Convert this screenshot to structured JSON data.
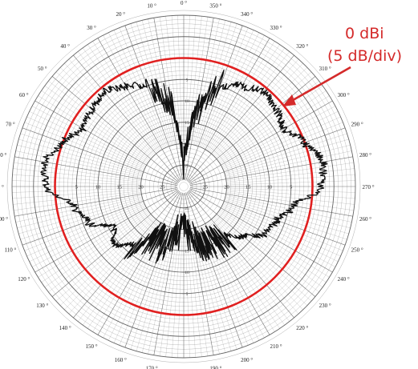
{
  "chart_data": {
    "type": "polar",
    "angle_labels": [
      "0 °",
      "10 °",
      "20 °",
      "30 °",
      "40 °",
      "50 °",
      "60 °",
      "70 °",
      "80 °",
      "90 °",
      "100 °",
      "110 °",
      "120 °",
      "130 °",
      "140 °",
      "150 °",
      "160 °",
      "170 °",
      "180 °",
      "190 °",
      "200 °",
      "210 °",
      "220 °",
      "230 °",
      "240 °",
      "250 °",
      "260 °",
      "270 °",
      "280 °",
      "290 °",
      "300 °",
      "310 °",
      "320 °",
      "330 °",
      "340 °",
      "350 °"
    ],
    "angle_direction": "counterclockwise",
    "zero_at": "top",
    "radial_tick_labels": [
      "25",
      "20",
      "15",
      "10",
      "5"
    ],
    "radial_unit_per_div": 5,
    "reference_circle_label": "0 dBi",
    "colors": {
      "pattern": "#111111",
      "reference": "#e02020",
      "grid": "#555555",
      "annotation": "#d42a2a"
    },
    "pattern": {
      "angles": [
        0,
        10,
        20,
        30,
        40,
        50,
        60,
        70,
        80,
        90,
        100,
        110,
        120,
        130,
        140,
        150,
        160,
        170,
        180,
        190,
        200,
        210,
        220,
        230,
        240,
        250,
        260,
        270,
        280,
        290,
        300,
        310,
        320,
        330,
        340,
        350
      ],
      "levels": [
        -25,
        -10,
        -5,
        -3,
        -1,
        -2,
        -3,
        0,
        3,
        2,
        -4,
        -6,
        -11,
        -9,
        -12,
        -16,
        -15,
        -19,
        -20,
        -18,
        -15,
        -15,
        -15,
        -12,
        -8,
        -7,
        -4,
        2,
        3,
        0,
        -3,
        -2,
        -1,
        -3,
        -5,
        -12
      ]
    }
  },
  "annotation": {
    "line1": "0 dBi",
    "line2": "(5 dB/div)"
  }
}
